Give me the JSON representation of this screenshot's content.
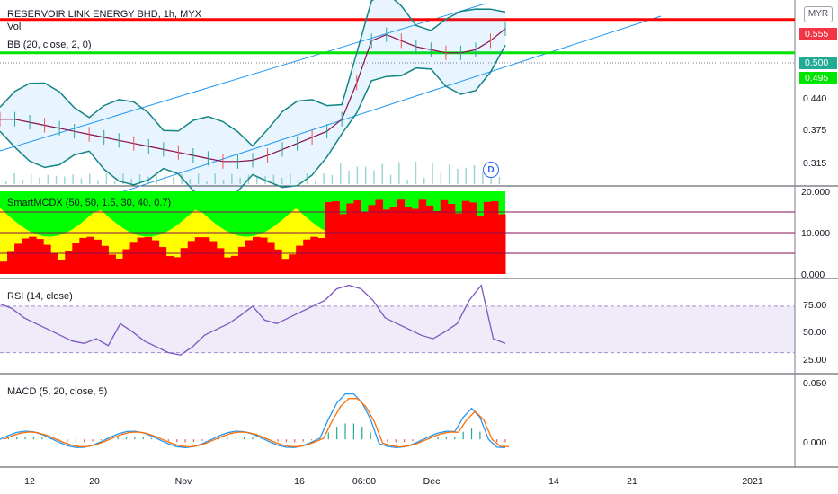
{
  "header": {
    "title": "RESERVOIR LINK ENERGY BHD, 1h, MYX",
    "volume_label": "Vol",
    "bb_label": "BB (20, close, 2, 0)",
    "currency_button": "MYR",
    "dividend_marker": "D"
  },
  "price_axis": {
    "badges": [
      {
        "text": "0.555",
        "color": "#f23645"
      },
      {
        "text": "0.500",
        "color": "#22ab94"
      },
      {
        "text": "0.495",
        "color": "#00e600"
      }
    ],
    "ticks": [
      "0.440",
      "0.375",
      "0.315"
    ]
  },
  "panels": {
    "smart_mcdx": {
      "label": "SmartMCDX (50, 50, 1.5, 30, 40, 0.7)",
      "ticks": [
        "20.000",
        "10.000",
        "0.000"
      ]
    },
    "rsi": {
      "label": "RSI (14, close)",
      "ticks": [
        "75.00",
        "50.00",
        "25.00"
      ]
    },
    "macd": {
      "label": "MACD (5, 20, close, 5)",
      "ticks": [
        "0.050",
        "0.000"
      ]
    }
  },
  "x_axis": {
    "ticks": [
      "12",
      "20",
      "Nov",
      "16",
      "06:00",
      "Dec",
      "14",
      "21",
      "2021"
    ]
  },
  "chart_data": [
    {
      "type": "line",
      "title": "RESERVOIR LINK ENERGY BHD, 1h, MYX",
      "description_series": "Price with Bollinger Bands (20, close, 2, 0)",
      "y_ticks": [
        0.555,
        0.5,
        0.495,
        0.44,
        0.375,
        0.315
      ],
      "ylim": [
        0.29,
        0.58
      ],
      "horizontal_levels": [
        {
          "value": 0.555,
          "color": "#ff0000"
        },
        {
          "value": 0.5,
          "color": "#00e600"
        }
      ],
      "series": [
        {
          "name": "BB (20, close, 2, 0)",
          "color": "#880e4f",
          "values": [
            0.39,
            0.39,
            0.385,
            0.38,
            0.375,
            0.37,
            0.365,
            0.36,
            0.355,
            0.35,
            0.345,
            0.34,
            0.335,
            0.33,
            0.325,
            0.32,
            0.32,
            0.322,
            0.33,
            0.34,
            0.35,
            0.36,
            0.37,
            0.39,
            0.45,
            0.52,
            0.53,
            0.52,
            0.51,
            0.505,
            0.5,
            0.5,
            0.505,
            0.52,
            0.54
          ]
        }
      ]
    },
    {
      "type": "bar",
      "title": "SmartMCDX (50, 50, 1.5, 30, 40, 0.7)",
      "ylim": [
        0,
        20
      ],
      "y_ticks": [
        20,
        10,
        0
      ],
      "reference_lines": [
        15,
        10,
        5
      ]
    },
    {
      "type": "line",
      "title": "RSI (14, close)",
      "ylim": [
        15,
        90
      ],
      "y_ticks": [
        75,
        50,
        25
      ],
      "band": [
        30,
        70
      ],
      "series": [
        {
          "name": "RSI (14, close)",
          "color": "#7e57c2",
          "values": [
            72,
            68,
            60,
            55,
            50,
            45,
            40,
            38,
            42,
            36,
            55,
            48,
            40,
            35,
            30,
            28,
            35,
            45,
            50,
            55,
            62,
            70,
            58,
            55,
            60,
            65,
            70,
            75,
            85,
            88,
            85,
            75,
            60,
            55,
            50,
            45,
            42,
            48,
            55,
            75,
            88,
            42,
            38
          ]
        }
      ]
    },
    {
      "type": "line",
      "title": "MACD (5, 20, close, 5)",
      "ylim": [
        -0.025,
        0.06
      ],
      "y_ticks": [
        0.05,
        0.0
      ]
    }
  ]
}
